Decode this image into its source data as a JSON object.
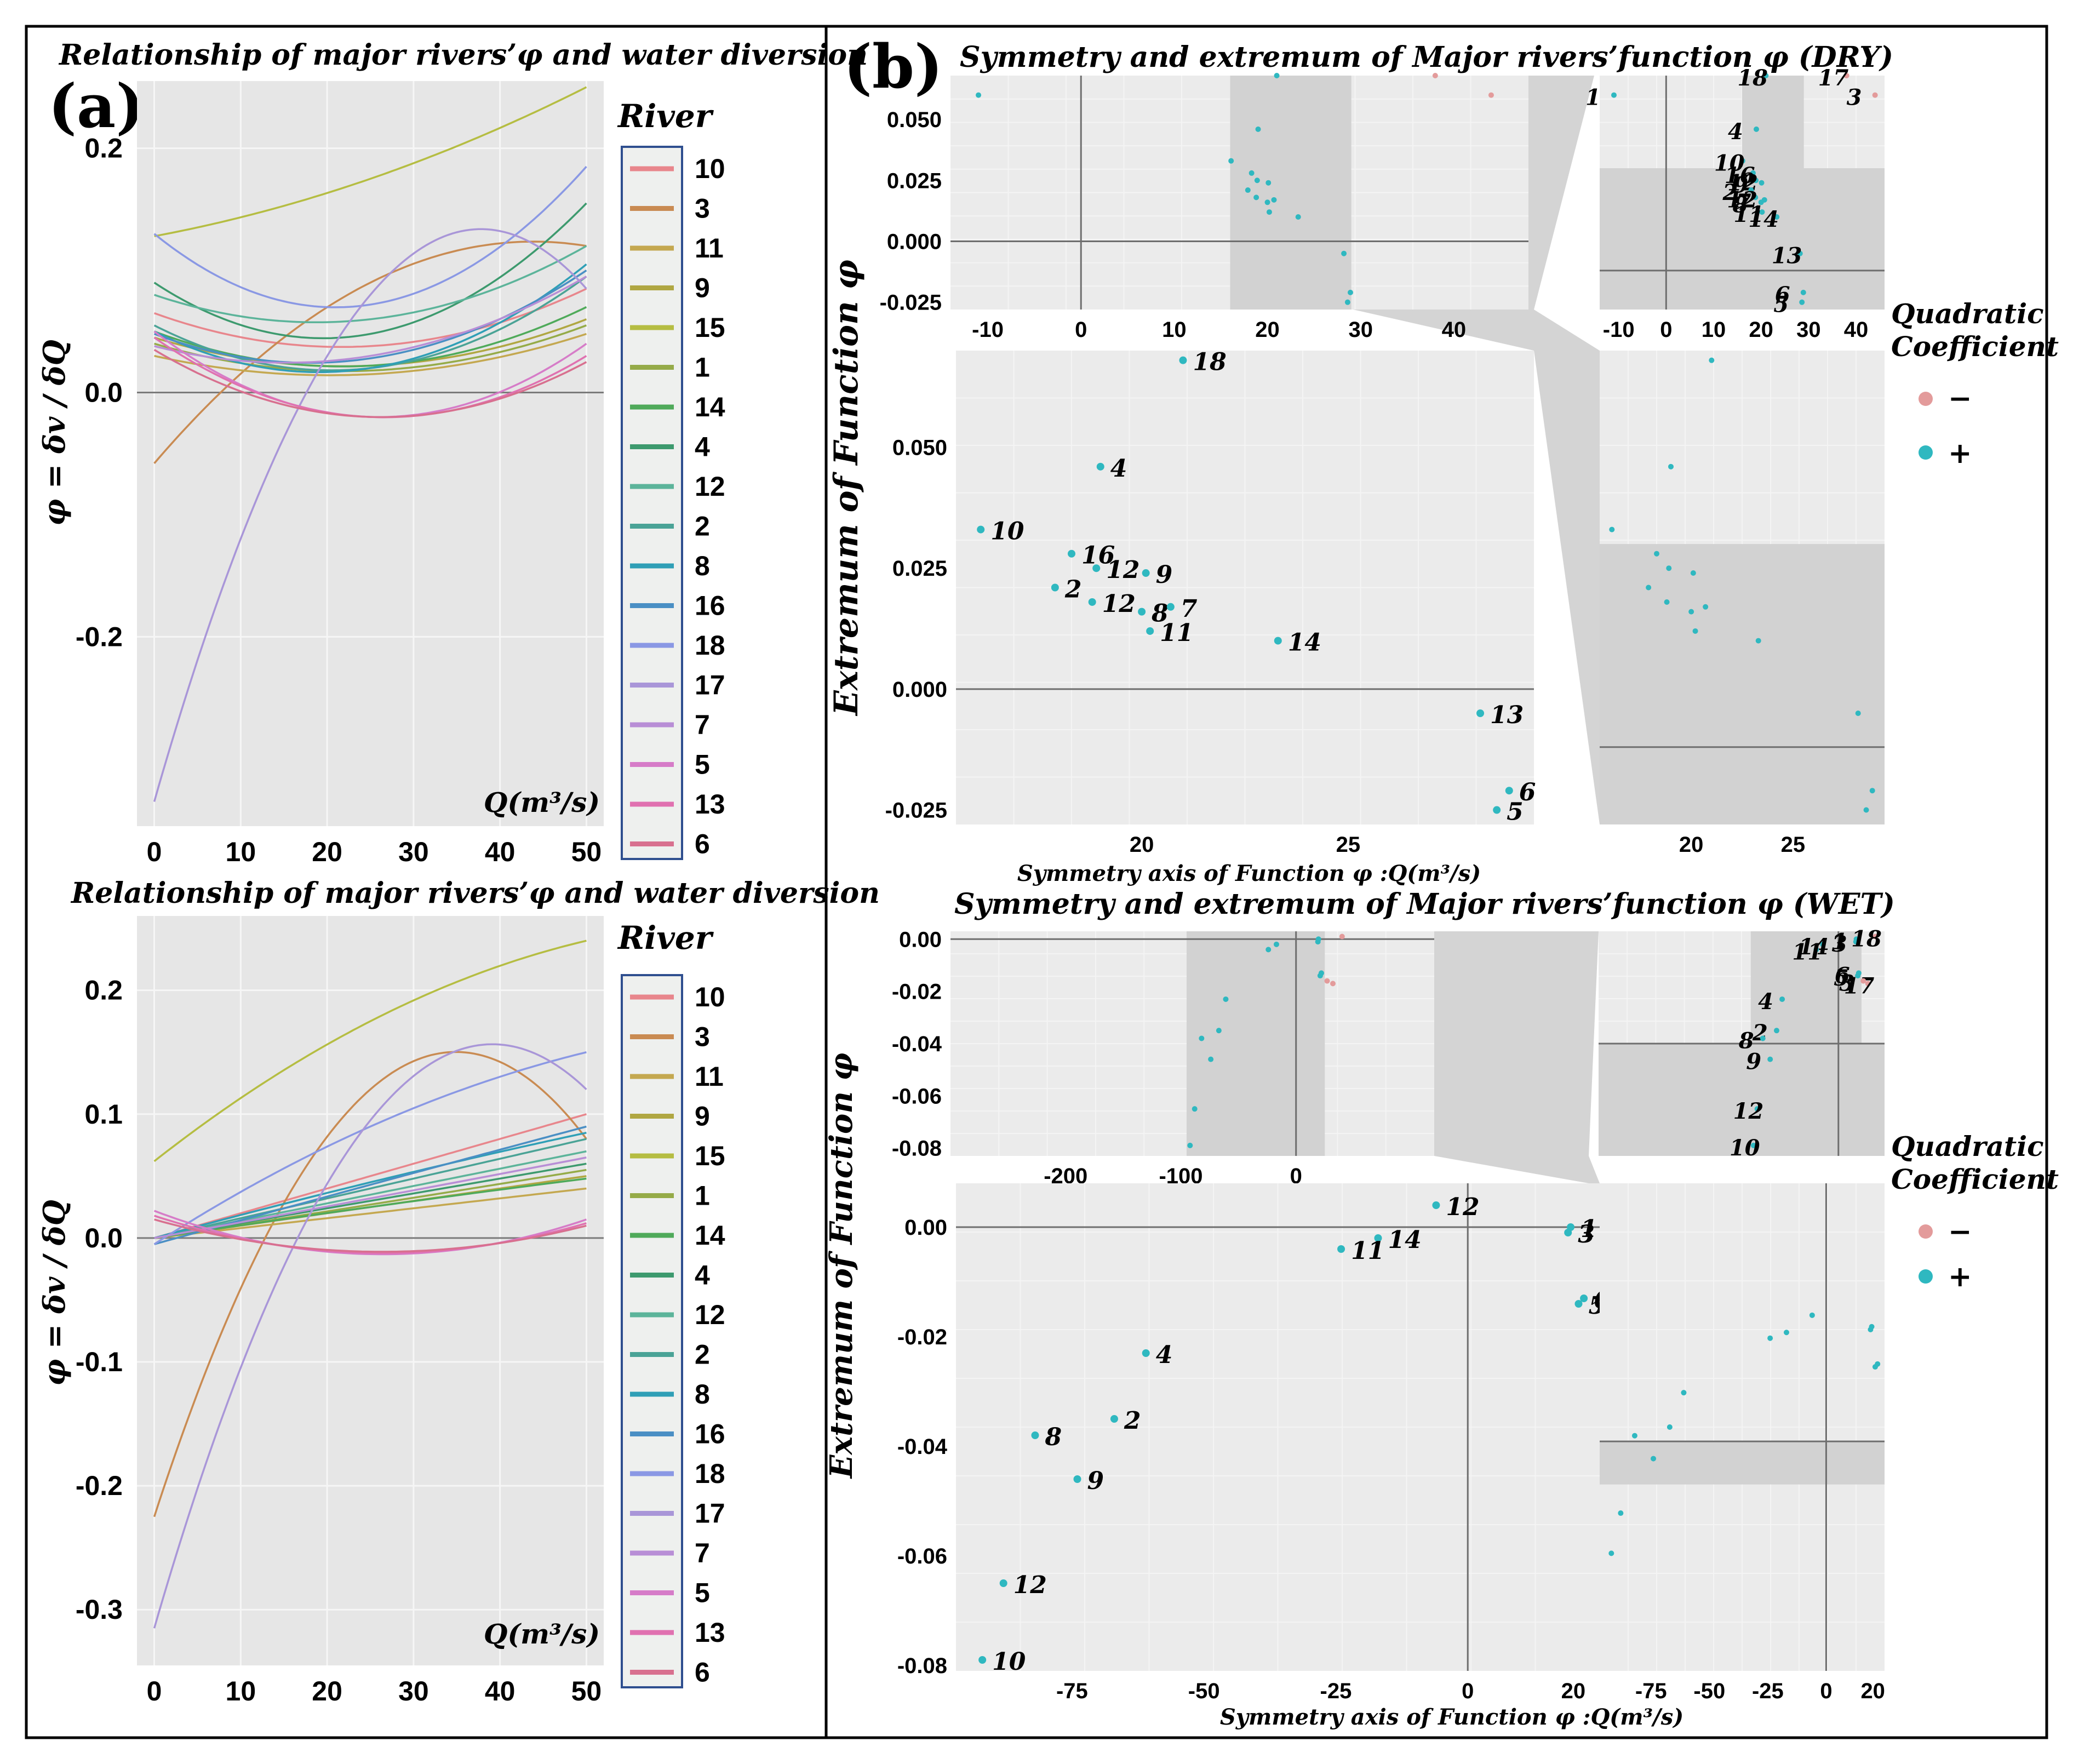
{
  "figure": {
    "panel_a_label": "(a)",
    "panel_b_label": "(b)"
  },
  "legend_a": {
    "title": "River",
    "rivers": [
      "10",
      "3",
      "11",
      "9",
      "15",
      "1",
      "14",
      "4",
      "12",
      "2",
      "8",
      "16",
      "18",
      "17",
      "7",
      "5",
      "13",
      "6"
    ],
    "colors": [
      "#e8868c",
      "#c98b52",
      "#c4a850",
      "#b0a742",
      "#b5bd42",
      "#95ab48",
      "#4faa5a",
      "#3d9a6e",
      "#5cb49a",
      "#4aa396",
      "#2f9fb6",
      "#4a8fc4",
      "#8a98e4",
      "#a996d8",
      "#b88ed6",
      "#d67cc8",
      "#e071b0",
      "#d8708f"
    ]
  },
  "legend_b": {
    "title_line1": "Quadratic",
    "title_line2": "Coefficient",
    "neg_label": "−",
    "pos_label": "+",
    "neg_color": "#e39b9b",
    "pos_color": "#2fb8c0"
  },
  "chart_data": [
    {
      "id": "a_dry",
      "type": "line",
      "title": "Relationship of major rivers’φ and water diversion",
      "xlabel": "Q(m³/s)",
      "ylabel": "φ = δv / δQ",
      "xlim": [
        -2,
        52
      ],
      "ylim": [
        -0.355,
        0.255
      ],
      "xticks": [
        0,
        10,
        20,
        30,
        40,
        50
      ],
      "yticks": [
        -0.2,
        0.0,
        0.2
      ],
      "ytick_labels": [
        "-0.2",
        "0.0",
        "0.2"
      ],
      "series_note": "quadratic curves: y at Q = 0, 25, 50",
      "series": [
        {
          "name": "10",
          "points": [
            0.065,
            0.038,
            0.085
          ]
        },
        {
          "name": "3",
          "points": [
            -0.058,
            0.09,
            0.12
          ]
        },
        {
          "name": "11",
          "points": [
            0.03,
            0.015,
            0.048
          ]
        },
        {
          "name": "9",
          "points": [
            0.045,
            0.022,
            0.06
          ]
        },
        {
          "name": "15",
          "points": [
            0.128,
            0.175,
            0.25
          ]
        },
        {
          "name": "1",
          "points": [
            0.04,
            0.018,
            0.055
          ]
        },
        {
          "name": "14",
          "points": [
            0.05,
            0.022,
            0.07
          ]
        },
        {
          "name": "4",
          "points": [
            0.09,
            0.048,
            0.155
          ]
        },
        {
          "name": "12",
          "points": [
            0.08,
            0.06,
            0.12
          ]
        },
        {
          "name": "2",
          "points": [
            0.055,
            0.02,
            0.095
          ]
        },
        {
          "name": "8",
          "points": [
            0.05,
            0.02,
            0.105
          ]
        },
        {
          "name": "16",
          "points": [
            0.048,
            0.028,
            0.1
          ]
        },
        {
          "name": "18",
          "points": [
            0.13,
            0.072,
            0.185
          ]
        },
        {
          "name": "17",
          "points": [
            -0.335,
            0.08,
            0.085
          ]
        },
        {
          "name": "7",
          "points": [
            0.038,
            0.03,
            0.095
          ]
        },
        {
          "name": "5",
          "points": [
            0.05,
            -0.02,
            0.04
          ]
        },
        {
          "name": "13",
          "points": [
            0.045,
            -0.02,
            0.03
          ]
        },
        {
          "name": "6",
          "points": [
            0.035,
            -0.02,
            0.025
          ]
        }
      ]
    },
    {
      "id": "a_wet",
      "type": "line",
      "title": "Relationship of major rivers’φ and water diversion",
      "xlabel": "Q(m³/s)",
      "ylabel": "φ = δv / δQ",
      "xlim": [
        -2,
        52
      ],
      "ylim": [
        -0.345,
        0.26
      ],
      "xticks": [
        0,
        10,
        20,
        30,
        40,
        50
      ],
      "yticks": [
        -0.3,
        -0.2,
        -0.1,
        0.0,
        0.1,
        0.2
      ],
      "ytick_labels": [
        "-0.3",
        "-0.2",
        "-0.1",
        "0.0",
        "0.1",
        "0.2"
      ],
      "series_note": "quadratic curves: y at Q = 0, 25, 50",
      "series": [
        {
          "name": "10",
          "points": [
            0.0,
            0.05,
            0.1
          ]
        },
        {
          "name": "3",
          "points": [
            -0.225,
            0.12,
            0.08
          ]
        },
        {
          "name": "11",
          "points": [
            0.0,
            0.02,
            0.04
          ]
        },
        {
          "name": "9",
          "points": [
            0.0,
            0.025,
            0.05
          ]
        },
        {
          "name": "15",
          "points": [
            0.062,
            0.175,
            0.24
          ]
        },
        {
          "name": "1",
          "points": [
            0.0,
            0.027,
            0.055
          ]
        },
        {
          "name": "14",
          "points": [
            0.0,
            0.025,
            0.048
          ]
        },
        {
          "name": "4",
          "points": [
            0.0,
            0.03,
            0.06
          ]
        },
        {
          "name": "12",
          "points": [
            0.0,
            0.035,
            0.07
          ]
        },
        {
          "name": "2",
          "points": [
            0.0,
            0.04,
            0.08
          ]
        },
        {
          "name": "8",
          "points": [
            0.0,
            0.045,
            0.085
          ]
        },
        {
          "name": "16",
          "points": [
            -0.005,
            0.043,
            0.09
          ]
        },
        {
          "name": "18",
          "points": [
            -0.005,
            0.09,
            0.15
          ]
        },
        {
          "name": "17",
          "points": [
            -0.315,
            0.095,
            0.12
          ]
        },
        {
          "name": "7",
          "points": [
            0.0,
            0.032,
            0.065
          ]
        },
        {
          "name": "5",
          "points": [
            0.022,
            -0.013,
            0.015
          ]
        },
        {
          "name": "13",
          "points": [
            0.018,
            -0.012,
            0.012
          ]
        },
        {
          "name": "6",
          "points": [
            0.015,
            -0.011,
            0.01
          ]
        }
      ]
    },
    {
      "id": "b_dry",
      "type": "scatter",
      "title": "Symmetry and extremum of Major rivers’function φ (DRY)",
      "xlabel": "Symmetry axis of Function φ :Q(m³/s)",
      "ylabel": "Extremum of Function φ",
      "points": [
        {
          "label": "18",
          "x": 21.0,
          "y": 0.068,
          "sign": "+"
        },
        {
          "label": "4",
          "x": 19.0,
          "y": 0.046,
          "sign": "+"
        },
        {
          "label": "10",
          "x": 16.1,
          "y": 0.033,
          "sign": "+"
        },
        {
          "label": "16",
          "x": 18.3,
          "y": 0.028,
          "sign": "+"
        },
        {
          "label": "12",
          "x": 18.9,
          "y": 0.025,
          "sign": "+"
        },
        {
          "label": "9",
          "x": 20.1,
          "y": 0.024,
          "sign": "+"
        },
        {
          "label": "2",
          "x": 17.9,
          "y": 0.021,
          "sign": "+"
        },
        {
          "label": "12",
          "x": 18.8,
          "y": 0.018,
          "sign": "+"
        },
        {
          "label": "8",
          "x": 20.0,
          "y": 0.016,
          "sign": "+"
        },
        {
          "label": "7",
          "x": 20.7,
          "y": 0.017,
          "sign": "+"
        },
        {
          "label": "11",
          "x": 20.2,
          "y": 0.012,
          "sign": "+"
        },
        {
          "label": "14",
          "x": 23.3,
          "y": 0.01,
          "sign": "+"
        },
        {
          "label": "13",
          "x": 28.2,
          "y": -0.005,
          "sign": "+"
        },
        {
          "label": "6",
          "x": 28.9,
          "y": -0.021,
          "sign": "+"
        },
        {
          "label": "5",
          "x": 28.6,
          "y": -0.025,
          "sign": "+"
        },
        {
          "label": "1",
          "x": -11.0,
          "y": 0.06,
          "sign": "+"
        },
        {
          "label": "17",
          "x": 38.0,
          "y": 0.068,
          "sign": "-"
        },
        {
          "label": "3",
          "x": 44.0,
          "y": 0.06,
          "sign": "-"
        }
      ],
      "inset_top_left": {
        "xlim": [
          -14,
          48
        ],
        "ylim": [
          -0.028,
          0.068
        ],
        "xticks": [
          -10,
          0,
          10,
          20,
          30,
          40
        ],
        "yticks": [
          -0.025,
          0.0,
          0.025,
          0.05
        ],
        "ytick_labels": [
          "-0.025",
          "0.000",
          "0.025",
          "0.050"
        ],
        "shade_x": [
          16,
          29
        ]
      },
      "inset_top_right": {
        "xlim": [
          -14,
          46
        ],
        "ylim": [
          -0.028,
          0.068
        ],
        "xticks": [
          -10,
          0,
          10,
          20,
          30,
          40
        ],
        "shade_x": [
          16,
          29
        ],
        "shade_y": [
          -0.028,
          0.03
        ]
      },
      "main": {
        "xlim": [
          15.5,
          29.5
        ],
        "ylim": [
          -0.028,
          0.07
        ],
        "xticks": [
          20,
          25
        ],
        "yticks": [
          -0.025,
          0.0,
          0.025,
          0.05
        ],
        "ytick_labels": [
          "-0.025",
          "0.000",
          "0.025",
          "0.050"
        ]
      },
      "zoom_right": {
        "xlim": [
          15.5,
          29.5
        ],
        "ylim": [
          -0.028,
          0.07
        ],
        "xticks": [
          20,
          25
        ],
        "shade_y": [
          -0.028,
          0.03
        ]
      }
    },
    {
      "id": "b_wet",
      "type": "scatter",
      "title": "Symmetry and extremum of Major rivers’function φ (WET)",
      "xlabel": "Symmetry axis of Function φ :Q(m³/s)",
      "ylabel": "Extremum of Function φ",
      "points": [
        {
          "label": "12",
          "x": -6.0,
          "y": 0.004,
          "sign": "+"
        },
        {
          "label": "1",
          "x": 19.5,
          "y": 0.0,
          "sign": "+"
        },
        {
          "label": "3",
          "x": 19.0,
          "y": -0.001,
          "sign": "+"
        },
        {
          "label": "14",
          "x": -17.0,
          "y": -0.002,
          "sign": "+"
        },
        {
          "label": "11",
          "x": -24.0,
          "y": -0.004,
          "sign": "+"
        },
        {
          "label": "6",
          "x": 22.0,
          "y": -0.013,
          "sign": "+"
        },
        {
          "label": "5",
          "x": 21.0,
          "y": -0.014,
          "sign": "+"
        },
        {
          "label": "4",
          "x": -61.0,
          "y": -0.023,
          "sign": "+"
        },
        {
          "label": "2",
          "x": -67.0,
          "y": -0.035,
          "sign": "+"
        },
        {
          "label": "8",
          "x": -82.0,
          "y": -0.038,
          "sign": "+"
        },
        {
          "label": "9",
          "x": -74.0,
          "y": -0.046,
          "sign": "+"
        },
        {
          "label": "12",
          "x": -88.0,
          "y": -0.065,
          "sign": "+"
        },
        {
          "label": "10",
          "x": -92.0,
          "y": -0.079,
          "sign": "+"
        },
        {
          "label": "18",
          "x": 40.0,
          "y": 0.001,
          "sign": "-"
        },
        {
          "label": "17",
          "x": 32.0,
          "y": -0.017,
          "sign": "-"
        },
        {
          "label": "3",
          "x": 27.0,
          "y": -0.016,
          "sign": "-"
        }
      ],
      "inset_top_left": {
        "xlim": [
          -300,
          120
        ],
        "ylim": [
          -0.083,
          0.003
        ],
        "xticks": [
          -200,
          -100,
          0
        ],
        "yticks": [
          -0.08,
          -0.06,
          -0.04,
          -0.02,
          0.0
        ],
        "ytick_labels": [
          "-0.08",
          "-0.06",
          "-0.04",
          "-0.02",
          "0.00"
        ],
        "shade_x": [
          -95,
          25
        ]
      },
      "inset_top_right": {
        "xlim": [
          -260,
          50
        ],
        "ylim": [
          -0.083,
          0.003
        ],
        "shade_x": [
          -95,
          25
        ],
        "shade_y": [
          -0.083,
          -0.04
        ]
      },
      "main": {
        "xlim": [
          -97,
          25
        ],
        "ylim": [
          -0.081,
          0.008
        ],
        "xticks": [
          -75,
          -50,
          -25,
          0,
          20
        ],
        "yticks": [
          -0.08,
          -0.06,
          -0.04,
          -0.02,
          0.0
        ],
        "ytick_labels": [
          "-0.08",
          "-0.06",
          "-0.04",
          "-0.02",
          "0.00"
        ]
      },
      "zoom_right": {
        "xlim": [
          -97,
          25
        ],
        "xticks": [
          -75,
          -50,
          -25,
          0,
          20
        ],
        "shade_y": [
          -0.055,
          -0.04
        ]
      }
    }
  ]
}
